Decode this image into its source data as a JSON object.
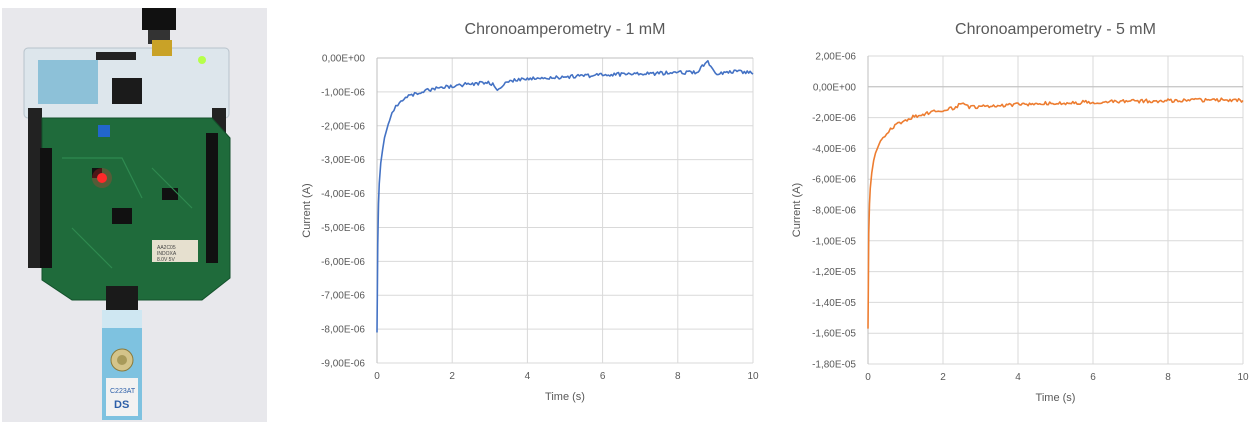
{
  "photo": {
    "description_icon": "potentiostat-board-photo-icon",
    "chip_label_1": "AA2C05",
    "chip_label_2": "INDOXA",
    "chip_label_3": "8.0V 5V",
    "strip_label": "C223AT",
    "strip_brand": "DS",
    "colors": {
      "pcb": "#1f6b3b",
      "nucleo": "#e8eef2",
      "strip": "#7ec2e0",
      "led": "#ff2a2a"
    }
  },
  "chart_data": [
    {
      "type": "line",
      "title": "Chronoamperometry - 1 mM",
      "xlabel": "Time (s)",
      "ylabel": "Current (A)",
      "xlim": [
        0,
        10
      ],
      "ylim": [
        -9e-06,
        0
      ],
      "xticks": [
        0,
        2,
        4,
        6,
        8,
        10
      ],
      "xtick_labels": [
        "0",
        "2",
        "4",
        "6",
        "8",
        "10"
      ],
      "yticks": [
        0,
        -1e-06,
        -2e-06,
        -3e-06,
        -4e-06,
        -5e-06,
        -6e-06,
        -7e-06,
        -8e-06,
        -9e-06
      ],
      "ytick_labels": [
        "0,00E+00",
        "-1,00E-06",
        "-2,00E-06",
        "-3,00E-06",
        "-4,00E-06",
        "-5,00E-06",
        "-6,00E-06",
        "-7,00E-06",
        "-8,00E-06",
        "-9,00E-06"
      ],
      "grid": true,
      "legend": "none",
      "series": [
        {
          "color": "#4472c4",
          "x": [
            0,
            0.02,
            0.04,
            0.06,
            0.1,
            0.15,
            0.2,
            0.3,
            0.4,
            0.5,
            0.6,
            0.8,
            1.0,
            1.2,
            1.5,
            1.8,
            2.0,
            2.5,
            3.0,
            3.2,
            3.5,
            4.0,
            4.5,
            5.0,
            5.5,
            6.0,
            6.5,
            7.0,
            7.5,
            8.0,
            8.5,
            8.8,
            9.0,
            9.5,
            10.0
          ],
          "y": [
            -8.1e-06,
            -5.5e-06,
            -4.3e-06,
            -3.7e-06,
            -3.1e-06,
            -2.7e-06,
            -2.35e-06,
            -1.95e-06,
            -1.65e-06,
            -1.45e-06,
            -1.3e-06,
            -1.15e-06,
            -1.05e-06,
            -9.8e-07,
            -9.2e-07,
            -8.7e-07,
            -8.2e-07,
            -7.6e-07,
            -7.2e-07,
            -9e-07,
            -6.8e-07,
            -6.2e-07,
            -5.8e-07,
            -5.6e-07,
            -5.3e-07,
            -5e-07,
            -4.8e-07,
            -4.7e-07,
            -4.5e-07,
            -4.3e-07,
            -4.2e-07,
            -1e-07,
            -4.5e-07,
            -4e-07,
            -4.5e-07
          ]
        }
      ]
    },
    {
      "type": "line",
      "title": "Chronoamperometry - 5 mM",
      "xlabel": "Time (s)",
      "ylabel": "Current (A)",
      "xlim": [
        0,
        10
      ],
      "ylim": [
        -1.8e-05,
        2e-06
      ],
      "xticks": [
        0,
        2,
        4,
        6,
        8,
        10
      ],
      "xtick_labels": [
        "0",
        "2",
        "4",
        "6",
        "8",
        "10"
      ],
      "yticks": [
        2e-06,
        0,
        -2e-06,
        -4e-06,
        -6e-06,
        -8e-06,
        -1e-05,
        -1.2e-05,
        -1.4e-05,
        -1.6e-05,
        -1.8e-05
      ],
      "ytick_labels": [
        "2,00E-06",
        "0,00E+00",
        "-2,00E-06",
        "-4,00E-06",
        "-6,00E-06",
        "-8,00E-06",
        "-1,00E-05",
        "-1,20E-05",
        "-1,40E-05",
        "-1,60E-05",
        "-1,80E-05"
      ],
      "grid": true,
      "legend": "none",
      "series": [
        {
          "color": "#ed7d31",
          "x": [
            0,
            0.02,
            0.04,
            0.06,
            0.1,
            0.15,
            0.2,
            0.3,
            0.4,
            0.5,
            0.6,
            0.8,
            1.0,
            1.2,
            1.5,
            1.8,
            2.0,
            2.3,
            2.5,
            2.7,
            3.0,
            3.5,
            4.0,
            4.5,
            5.0,
            5.5,
            6.0,
            6.5,
            7.0,
            7.5,
            8.0,
            8.5,
            9.0,
            9.5,
            10.0
          ],
          "y": [
            -1.57e-05,
            -9.5e-06,
            -7.6e-06,
            -6.6e-06,
            -5.6e-06,
            -4.8e-06,
            -4.3e-06,
            -3.7e-06,
            -3.3e-06,
            -3e-06,
            -2.75e-06,
            -2.4e-06,
            -2.15e-06,
            -1.95e-06,
            -1.75e-06,
            -1.6e-06,
            -1.5e-06,
            -1.4e-06,
            -1e-06,
            -1.35e-06,
            -1.28e-06,
            -1.2e-06,
            -1.15e-06,
            -1.1e-06,
            -1.05e-06,
            -1.02e-06,
            -1e-06,
            -9.7e-07,
            -9.5e-07,
            -9.2e-07,
            -9e-07,
            -8.8e-07,
            -8.6e-07,
            -8.5e-07,
            -9e-07
          ]
        }
      ]
    }
  ]
}
